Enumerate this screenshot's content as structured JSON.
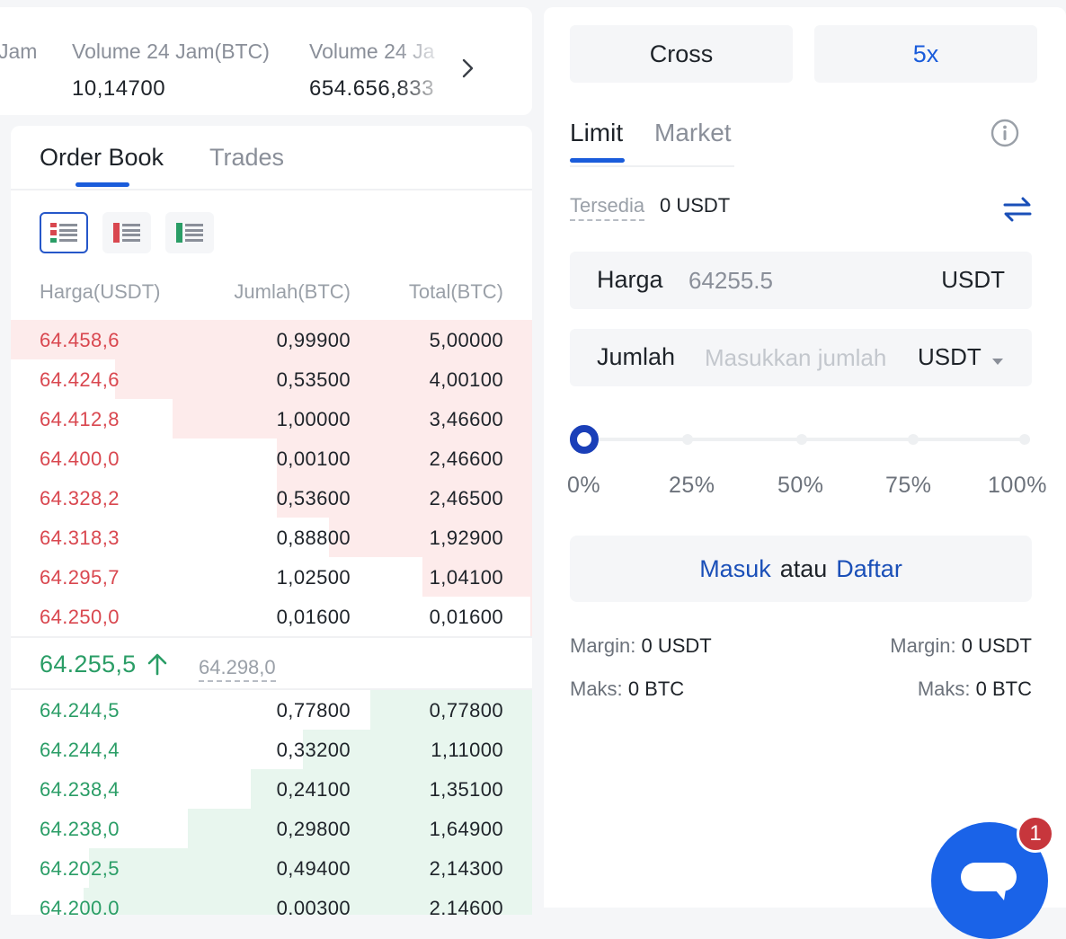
{
  "stats": [
    {
      "label": "Jam",
      "value": ""
    },
    {
      "label": "Volume 24 Jam(BTC)",
      "value": "10,14700"
    },
    {
      "label": "Volume 24 Ja",
      "value": "654.656,833"
    }
  ],
  "orderbook": {
    "tabs": [
      "Order Book",
      "Trades"
    ],
    "active_tab": "Order Book",
    "headers": {
      "price": "Harga(USDT)",
      "amount": "Jumlah(BTC)",
      "total": "Total(BTC)"
    },
    "asks": [
      {
        "price": "64.458,6",
        "amount": "0,99900",
        "total": "5,00000",
        "depth": 1.0
      },
      {
        "price": "64.424,6",
        "amount": "0,53500",
        "total": "4,00100",
        "depth": 0.8
      },
      {
        "price": "64.412,8",
        "amount": "1,00000",
        "total": "3,46600",
        "depth": 0.69
      },
      {
        "price": "64.400,0",
        "amount": "0,00100",
        "total": "2,46600",
        "depth": 0.49
      },
      {
        "price": "64.328,2",
        "amount": "0,53600",
        "total": "2,46500",
        "depth": 0.49
      },
      {
        "price": "64.318,3",
        "amount": "0,88800",
        "total": "1,92900",
        "depth": 0.39
      },
      {
        "price": "64.295,7",
        "amount": "1,02500",
        "total": "1,04100",
        "depth": 0.21
      },
      {
        "price": "64.250,0",
        "amount": "0,01600",
        "total": "0,01600",
        "depth": 0.003
      }
    ],
    "mid": {
      "price": "64.255,5",
      "mark": "64.298,0"
    },
    "bids": [
      {
        "price": "64.244,5",
        "amount": "0,77800",
        "total": "0,77800",
        "depth": 0.31
      },
      {
        "price": "64.244,4",
        "amount": "0,33200",
        "total": "1,11000",
        "depth": 0.44
      },
      {
        "price": "64.238,4",
        "amount": "0,24100",
        "total": "1,35100",
        "depth": 0.54
      },
      {
        "price": "64.238,0",
        "amount": "0,29800",
        "total": "1,64900",
        "depth": 0.66
      },
      {
        "price": "64.202,5",
        "amount": "0,49400",
        "total": "2,14300",
        "depth": 0.85
      },
      {
        "price": "64.200,0",
        "amount": "0,00300",
        "total": "2,14600",
        "depth": 0.86
      }
    ]
  },
  "trade": {
    "margin_mode": "Cross",
    "leverage": "5x",
    "order_types": [
      "Limit",
      "Market"
    ],
    "active_type": "Limit",
    "available_label": "Tersedia",
    "available_value": "0 USDT",
    "price_field": {
      "label": "Harga",
      "value": "64255.5",
      "unit": "USDT"
    },
    "amount_field": {
      "label": "Jumlah",
      "placeholder": "Masukkan jumlah",
      "unit": "USDT"
    },
    "slider": {
      "value": 0,
      "marks": [
        "0%",
        "25%",
        "50%",
        "75%",
        "100%"
      ]
    },
    "login": {
      "login_label": "Masuk",
      "or_label": "atau",
      "signup_label": "Daftar"
    },
    "buy_info": {
      "margin_label": "Margin:",
      "margin_value": "0 USDT",
      "max_label": "Maks:",
      "max_value": "0 BTC"
    },
    "sell_info": {
      "margin_label": "Margin:",
      "margin_value": "0 USDT",
      "max_label": "Maks:",
      "max_value": "0 BTC"
    }
  },
  "chat": {
    "badge_count": "1"
  },
  "colors": {
    "accent": "#1a5cdb",
    "ask": "#d9474f",
    "bid": "#2a9d66",
    "ask_depth": "#fdebeb",
    "bid_depth": "#e8f6ee"
  }
}
